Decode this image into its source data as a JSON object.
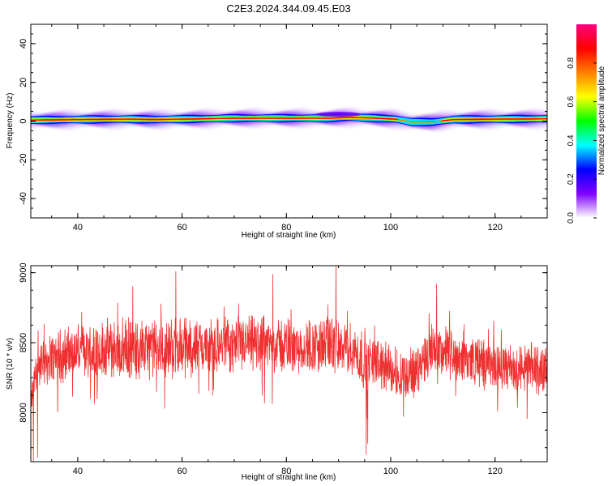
{
  "figure": {
    "title": "C2E3.2024.344.09.45.E03"
  },
  "chart_data": [
    {
      "type": "heatmap",
      "xlabel": "Height of straight line (km)",
      "ylabel": "Frequency (Hz)",
      "xlim": [
        31,
        130
      ],
      "ylim": [
        -50,
        50
      ],
      "x_ticks": [
        40,
        60,
        80,
        100,
        120
      ],
      "y_ticks": [
        -40,
        -20,
        0,
        20,
        40
      ],
      "grid": false,
      "band_center_hz": [
        [
          31,
          0.5
        ],
        [
          40,
          0.8
        ],
        [
          50,
          1.0
        ],
        [
          55,
          0.8
        ],
        [
          60,
          1.0
        ],
        [
          70,
          1.5
        ],
        [
          80,
          1.5
        ],
        [
          88,
          1.5
        ],
        [
          92,
          2.0
        ],
        [
          97,
          1.5
        ],
        [
          101,
          1.0
        ],
        [
          104,
          -0.5
        ],
        [
          108,
          -0.5
        ],
        [
          112,
          0.8
        ],
        [
          120,
          1.0
        ],
        [
          130,
          1.2
        ]
      ],
      "colorbar": {
        "label": "Normalized spectral amplitude",
        "min": 0.0,
        "max": 1.0,
        "ticks": [
          "0.0",
          "0.2",
          "0.4",
          "0.6",
          "0.8"
        ],
        "colormap": [
          "#ffffff",
          "#8000ff",
          "#0000ff",
          "#00ffff",
          "#00ff00",
          "#ffff00",
          "#ff8000",
          "#ff0000",
          "#ff0080"
        ]
      }
    },
    {
      "type": "line",
      "xlabel": "Height of straight line (km)",
      "ylabel": "SNR (10 * v/v)",
      "xlim": [
        31,
        130
      ],
      "ylim": [
        7650,
        9050
      ],
      "x_ticks": [
        40,
        60,
        80,
        100,
        120
      ],
      "y_ticks": [
        8000,
        8500,
        9000
      ],
      "grid": false,
      "series": [
        {
          "color": "#f03030",
          "x": [
            31,
            32,
            34,
            36,
            40,
            45,
            50,
            55,
            60,
            65,
            70,
            75,
            80,
            85,
            88,
            90,
            93,
            95,
            96,
            98,
            100,
            102,
            104,
            106,
            108,
            110,
            115,
            120,
            125,
            130
          ],
          "values": [
            8050,
            8300,
            8380,
            8400,
            8440,
            8450,
            8460,
            8450,
            8470,
            8470,
            8480,
            8490,
            8480,
            8470,
            8490,
            8470,
            8430,
            8380,
            8360,
            8350,
            8300,
            8280,
            8270,
            8360,
            8480,
            8440,
            8380,
            8330,
            8310,
            8320
          ],
          "noise_halfwidth": [
            80,
            120,
            150,
            160,
            170,
            180,
            180,
            180,
            180,
            170,
            170,
            170,
            170,
            170,
            170,
            160,
            170,
            180,
            160,
            160,
            160,
            160,
            160,
            160,
            160,
            160,
            150,
            150,
            150,
            150
          ],
          "spikes": [
            [
              31.5,
              7650
            ],
            [
              32.3,
              7680
            ],
            [
              95.3,
              7700
            ],
            [
              95.6,
              7780
            ],
            [
              89.5,
              9060
            ],
            [
              58.8,
              9010
            ],
            [
              108.8,
              8920
            ],
            [
              77.4,
              8990
            ]
          ]
        }
      ]
    }
  ]
}
